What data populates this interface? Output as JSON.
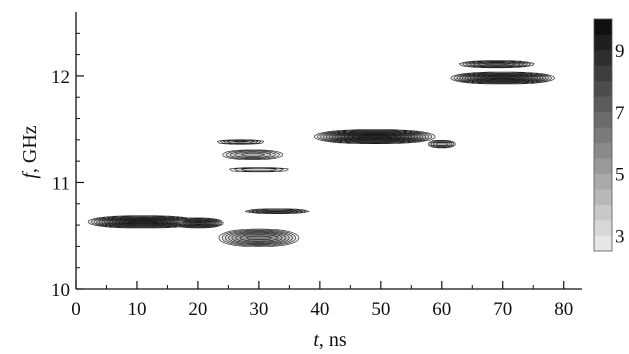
{
  "chart_data": {
    "type": "heatmap",
    "title": "",
    "xlabel_var": "t",
    "xlabel_unit": ", ns",
    "ylabel_var": "f",
    "ylabel_unit": ", GHz",
    "xlim": [
      0,
      83
    ],
    "ylim": [
      10,
      12.6
    ],
    "xticks": [
      0,
      10,
      20,
      30,
      40,
      50,
      60,
      70,
      80
    ],
    "yticks": [
      10,
      11,
      12
    ],
    "colorbar": {
      "ticks": [
        3,
        5,
        7,
        9
      ],
      "levels": [
        2.5,
        3,
        3.5,
        4,
        4.5,
        5,
        5.5,
        6,
        6.5,
        7,
        7.5,
        8,
        8.5,
        9,
        9.5,
        10
      ],
      "range": [
        2.5,
        10
      ]
    },
    "blobs": [
      {
        "name": "mode-10.6GHz-strong",
        "t": 11,
        "f": 10.63,
        "st": 6.2,
        "sf": 0.035,
        "peak": 9.6
      },
      {
        "name": "mode-10.6GHz-tail",
        "t": 20,
        "f": 10.62,
        "st": 3.0,
        "sf": 0.03,
        "peak": 8.2
      },
      {
        "name": "mode-10.5GHz",
        "t": 30,
        "f": 10.48,
        "st": 5.2,
        "sf": 0.06,
        "peak": 6.3
      },
      {
        "name": "mode-10.7GHz",
        "t": 33,
        "f": 10.73,
        "st": 4.5,
        "sf": 0.018,
        "peak": 5.3
      },
      {
        "name": "mode-11.4GHz-left",
        "t": 27,
        "f": 11.38,
        "st": 3.5,
        "sf": 0.018,
        "peak": 5.0
      },
      {
        "name": "mode-11.25GHz",
        "t": 29,
        "f": 11.26,
        "st": 4.5,
        "sf": 0.04,
        "peak": 4.8
      },
      {
        "name": "mode-11.1GHz",
        "t": 30,
        "f": 11.12,
        "st": 5.0,
        "sf": 0.02,
        "peak": 4.2
      },
      {
        "name": "mode-11.4GHz-strong",
        "t": 49,
        "f": 11.43,
        "st": 6.8,
        "sf": 0.04,
        "peak": 9.6
      },
      {
        "name": "mode-11.35GHz-tail",
        "t": 60,
        "f": 11.36,
        "st": 2.0,
        "sf": 0.03,
        "peak": 5.0
      },
      {
        "name": "mode-12GHz",
        "t": 70,
        "f": 11.98,
        "st": 6.0,
        "sf": 0.035,
        "peak": 8.8
      },
      {
        "name": "mode-12.1GHz",
        "t": 69,
        "f": 12.11,
        "st": 5.0,
        "sf": 0.025,
        "peak": 6.0
      }
    ]
  }
}
